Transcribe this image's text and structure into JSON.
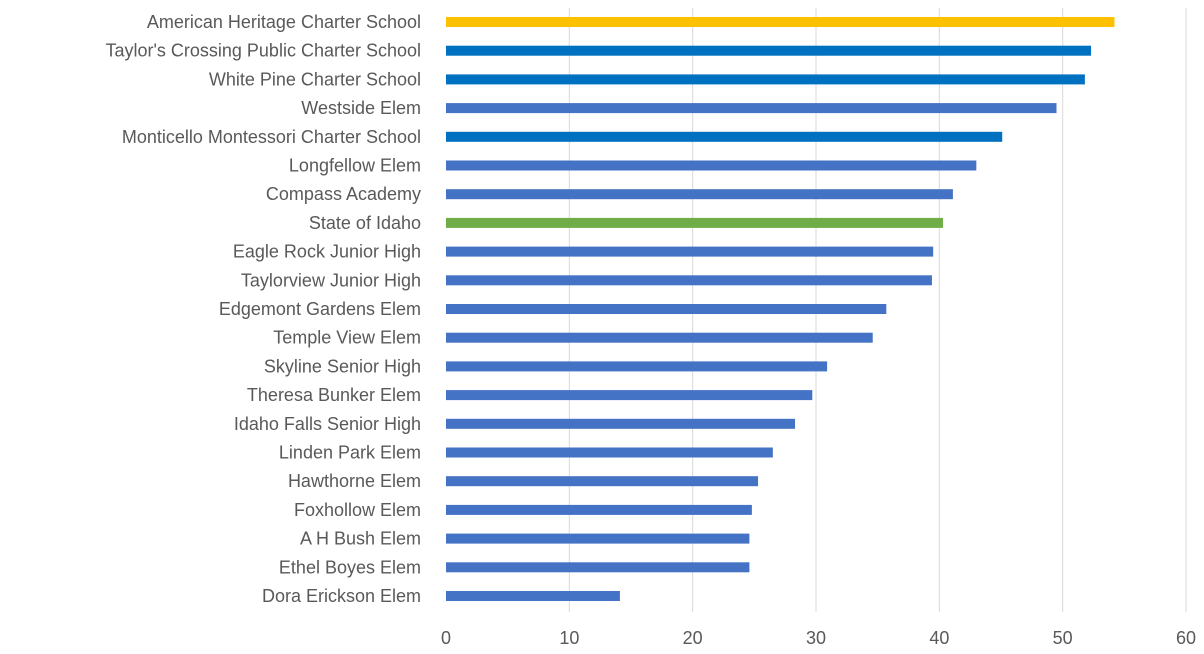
{
  "chart_data": {
    "type": "bar",
    "orientation": "horizontal",
    "categories": [
      "American Heritage Charter School",
      "Taylor's Crossing Public Charter School",
      "White Pine Charter School",
      "Westside Elem",
      "Monticello Montessori Charter School",
      "Longfellow Elem",
      "Compass Academy",
      "State of Idaho",
      "Eagle Rock Junior High",
      "Taylorview Junior High",
      "Edgemont Gardens Elem",
      "Temple View Elem",
      "Skyline Senior High",
      "Theresa Bunker Elem",
      "Idaho Falls Senior High",
      "Linden Park Elem",
      "Hawthorne Elem",
      "Foxhollow Elem",
      "A H Bush Elem",
      "Ethel Boyes Elem",
      "Dora Erickson Elem"
    ],
    "values": [
      54.2,
      52.3,
      51.8,
      49.5,
      45.1,
      43.0,
      41.1,
      40.3,
      39.5,
      39.4,
      35.7,
      34.6,
      30.9,
      29.7,
      28.3,
      26.5,
      25.3,
      24.8,
      24.6,
      24.6,
      14.1
    ],
    "bar_colors": [
      "#ffc000",
      "#0070c0",
      "#0070c0",
      "#4472c4",
      "#0070c0",
      "#4472c4",
      "#4472c4",
      "#70ad47",
      "#4472c4",
      "#4472c4",
      "#4472c4",
      "#4472c4",
      "#4472c4",
      "#4472c4",
      "#4472c4",
      "#4472c4",
      "#4472c4",
      "#4472c4",
      "#4472c4",
      "#4472c4",
      "#4472c4"
    ],
    "xlim": [
      0,
      60
    ],
    "x_ticks": [
      0,
      10,
      20,
      30,
      40,
      50,
      60
    ],
    "grid": "vertical",
    "legend": "none",
    "title": "",
    "xlabel": "",
    "ylabel": ""
  }
}
